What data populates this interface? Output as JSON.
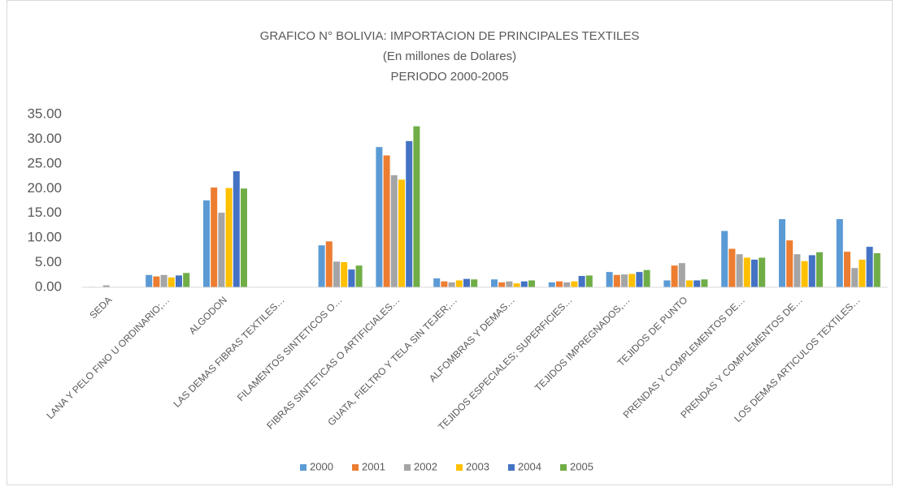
{
  "chart_data": {
    "type": "bar",
    "title": "GRAFICO N° BOLIVIA: IMPORTACION DE PRINCIPALES TEXTILES",
    "subtitle": "(En millones de Dolares)",
    "period": "PERIODO 2000-2005",
    "categories": [
      "SEDA",
      "LANA Y PELO FINO U ORDINARIO;…",
      "ALGODON",
      "LAS DEMAS FIBRAS TEXTILES…",
      "FILAMENTOS SINTETICOS O…",
      "FIBRAS SINTETICAS O ARTIFICIALES…",
      "GUATA, FIELTRO Y TELA SIN TEJER;…",
      "ALFOMBRAS Y DEMAS…",
      "TEJIDOS ESPECIALES; SUPERFICIES…",
      "TEJIDOS IMPREGNADOS,…",
      "TEJIDOS DE PUNTO",
      "PRENDAS Y COMPLEMENTOS DE…",
      "PRENDAS Y COMPLEMENTOS DE…",
      "LOS DEMAS ARTICULOS TEXTILES…"
    ],
    "series": [
      {
        "name": "2000",
        "color": "#5b9bd5",
        "values": [
          0.1,
          2.5,
          17.6,
          0,
          8.5,
          28.4,
          1.8,
          1.6,
          1.0,
          3.1,
          1.4,
          11.4,
          13.8,
          13.8
        ]
      },
      {
        "name": "2001",
        "color": "#ed7d31",
        "values": [
          0.05,
          2.2,
          20.2,
          0,
          9.3,
          26.7,
          1.2,
          1.0,
          1.2,
          2.5,
          4.4,
          7.8,
          9.5,
          7.2
        ]
      },
      {
        "name": "2002",
        "color": "#a5a5a5",
        "values": [
          0.4,
          2.5,
          15.1,
          0,
          5.2,
          22.7,
          1.0,
          1.2,
          1.0,
          2.6,
          4.9,
          6.7,
          6.7,
          3.9
        ]
      },
      {
        "name": "2003",
        "color": "#ffc000",
        "values": [
          0.05,
          2.0,
          20.1,
          0,
          5.1,
          21.8,
          1.4,
          0.8,
          1.2,
          2.7,
          1.4,
          6.0,
          5.3,
          5.6
        ]
      },
      {
        "name": "2004",
        "color": "#4472c4",
        "values": [
          0.05,
          2.4,
          23.5,
          0,
          3.6,
          29.6,
          1.7,
          1.2,
          2.3,
          3.1,
          1.4,
          5.6,
          6.5,
          8.2
        ]
      },
      {
        "name": "2005",
        "color": "#70ad47",
        "values": [
          0.05,
          2.9,
          20.0,
          0,
          4.4,
          32.6,
          1.6,
          1.4,
          2.4,
          3.5,
          1.6,
          6.0,
          7.1,
          6.9
        ]
      }
    ],
    "ylim": [
      0,
      35
    ],
    "yticks": [
      {
        "value": 0,
        "label": "0.00"
      },
      {
        "value": 5,
        "label": "5.00"
      },
      {
        "value": 10,
        "label": "10.00"
      },
      {
        "value": 15,
        "label": "15.00"
      },
      {
        "value": 20,
        "label": "20.00"
      },
      {
        "value": 25,
        "label": "25.00"
      },
      {
        "value": 30,
        "label": "30.00"
      },
      {
        "value": 35,
        "label": "35.00"
      }
    ],
    "grid": false,
    "legend": "bottom"
  }
}
